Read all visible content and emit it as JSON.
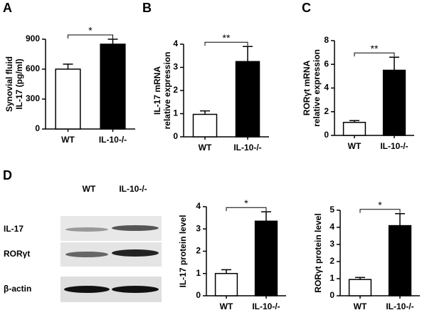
{
  "chart_data": [
    {
      "type": "bar",
      "panel": "A",
      "ylabel": [
        "Synovial fluid",
        "IL-17 (pg/ml)"
      ],
      "categories": [
        "WT",
        "IL-10-/-"
      ],
      "values": [
        600,
        850
      ],
      "errors": [
        50,
        50
      ],
      "colors": [
        "#ffffff",
        "#000000"
      ],
      "ylim": [
        0,
        900
      ],
      "yticks": [
        0,
        300,
        600,
        900
      ],
      "annotation": "*"
    },
    {
      "type": "bar",
      "panel": "B",
      "ylabel": [
        "IL-17 mRNA",
        "relative expression"
      ],
      "categories": [
        "WT",
        "IL-10-/-"
      ],
      "values": [
        0.97,
        3.25
      ],
      "errors": [
        0.15,
        0.65
      ],
      "colors": [
        "#ffffff",
        "#000000"
      ],
      "ylim": [
        0,
        4
      ],
      "yticks": [
        0,
        1,
        2,
        3,
        4
      ],
      "annotation": "**"
    },
    {
      "type": "bar",
      "panel": "C",
      "ylabel": [
        "RORγt mRNA",
        "relative expression"
      ],
      "categories": [
        "WT",
        "IL-10-/-"
      ],
      "values": [
        1.1,
        5.5
      ],
      "errors": [
        0.15,
        1.1
      ],
      "colors": [
        "#ffffff",
        "#000000"
      ],
      "ylim": [
        0,
        8
      ],
      "yticks": [
        0,
        2,
        4,
        6,
        8
      ],
      "annotation": "**"
    },
    {
      "type": "bar",
      "ylabel": [
        "IL-17 protein level"
      ],
      "categories": [
        "WT",
        "IL-10-/-"
      ],
      "values": [
        1.0,
        3.35
      ],
      "errors": [
        0.17,
        0.42
      ],
      "colors": [
        "#ffffff",
        "#000000"
      ],
      "ylim": [
        0,
        4
      ],
      "yticks": [
        0,
        1,
        2,
        3,
        4
      ],
      "annotation": "*"
    },
    {
      "type": "bar",
      "ylabel": [
        "RORγt  protein level"
      ],
      "categories": [
        "WT",
        "IL-10-/-"
      ],
      "values": [
        0.95,
        4.1
      ],
      "errors": [
        0.12,
        0.7
      ],
      "colors": [
        "#ffffff",
        "#000000"
      ],
      "ylim": [
        0,
        5
      ],
      "yticks": [
        0,
        1,
        2,
        3,
        4,
        5
      ],
      "annotation": "*"
    }
  ],
  "blot": {
    "panel": "D",
    "lanes": [
      "WT",
      "IL-10-/-"
    ],
    "rows": [
      "IL-17",
      "RORγt",
      "β-actin"
    ]
  }
}
